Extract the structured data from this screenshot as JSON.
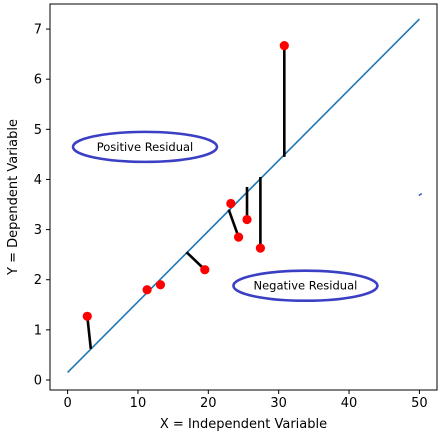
{
  "chart_data": {
    "type": "scatter",
    "xlabel": "X = Independent Variable",
    "ylabel": "Y = Dependent Variable",
    "xlim": [
      -2.5,
      52.5
    ],
    "ylim": [
      -0.2,
      7.5
    ],
    "xticks": [
      0,
      10,
      20,
      30,
      40,
      50
    ],
    "yticks": [
      0,
      1,
      2,
      3,
      4,
      5,
      6,
      7
    ],
    "grid": false,
    "fit_line": {
      "x": [
        0,
        50
      ],
      "y": [
        0.15,
        7.2
      ],
      "color": "#1f77b4"
    },
    "points": [
      {
        "x": 2.8,
        "y": 1.27
      },
      {
        "x": 11.3,
        "y": 1.8
      },
      {
        "x": 13.2,
        "y": 1.9
      },
      {
        "x": 19.5,
        "y": 2.2
      },
      {
        "x": 23.2,
        "y": 3.52
      },
      {
        "x": 24.3,
        "y": 2.85
      },
      {
        "x": 25.5,
        "y": 3.2
      },
      {
        "x": 27.4,
        "y": 2.63
      },
      {
        "x": 30.8,
        "y": 6.67
      }
    ],
    "point_color": "#ff0000",
    "residual_segments": [
      {
        "x1": 2.8,
        "y1": 1.27,
        "x2": 3.3,
        "y2": 0.62
      },
      {
        "x1": 19.5,
        "y1": 2.2,
        "x2": 16.9,
        "y2": 2.55
      },
      {
        "x1": 24.3,
        "y1": 2.85,
        "x2": 22.9,
        "y2": 3.4
      },
      {
        "x1": 25.5,
        "y1": 3.2,
        "x2": 25.5,
        "y2": 3.85
      },
      {
        "x1": 27.4,
        "y1": 2.63,
        "x2": 27.4,
        "y2": 4.05
      },
      {
        "x1": 30.8,
        "y1": 6.67,
        "x2": 30.8,
        "y2": 4.45
      }
    ],
    "stray_mark": {
      "x": 50.2,
      "y": 3.7
    },
    "annotations": [
      {
        "text": "Positive Residual",
        "x": 11.0,
        "y": 4.65
      },
      {
        "text": "Negative Residual",
        "x": 33.8,
        "y": 1.88
      }
    ],
    "annotation_outline_color": "#3b3fc4"
  }
}
